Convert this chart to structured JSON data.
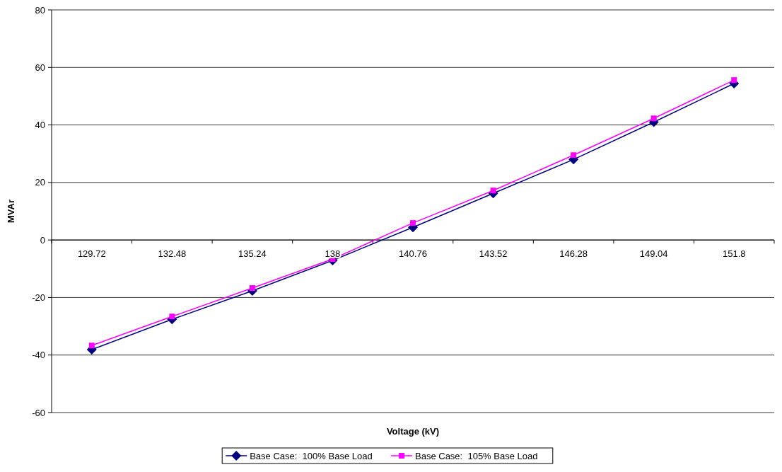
{
  "chart_data": {
    "type": "line",
    "xlabel": "Voltage (kV)",
    "ylabel": "MVAr",
    "categories": [
      "129.72",
      "132.48",
      "135.24",
      "138",
      "140.76",
      "143.52",
      "146.28",
      "149.04",
      "151.8"
    ],
    "series": [
      {
        "name": "Base Case:  100% Base Load",
        "color": "#000080",
        "marker": "diamond",
        "values": [
          -38.1,
          -27.6,
          -17.7,
          -7.1,
          4.4,
          16.2,
          28.0,
          41.0,
          54.4
        ]
      },
      {
        "name": "Base Case:  105% Base Load",
        "color": "#ff00ff",
        "marker": "square",
        "values": [
          -36.7,
          -26.6,
          -16.7,
          -6.6,
          5.9,
          17.2,
          29.5,
          42.3,
          55.6
        ]
      }
    ],
    "ylim": [
      -60,
      80
    ],
    "yticks": [
      -60,
      -40,
      -20,
      0,
      20,
      40,
      60,
      80
    ],
    "grid": "y",
    "legend": "bottom"
  }
}
